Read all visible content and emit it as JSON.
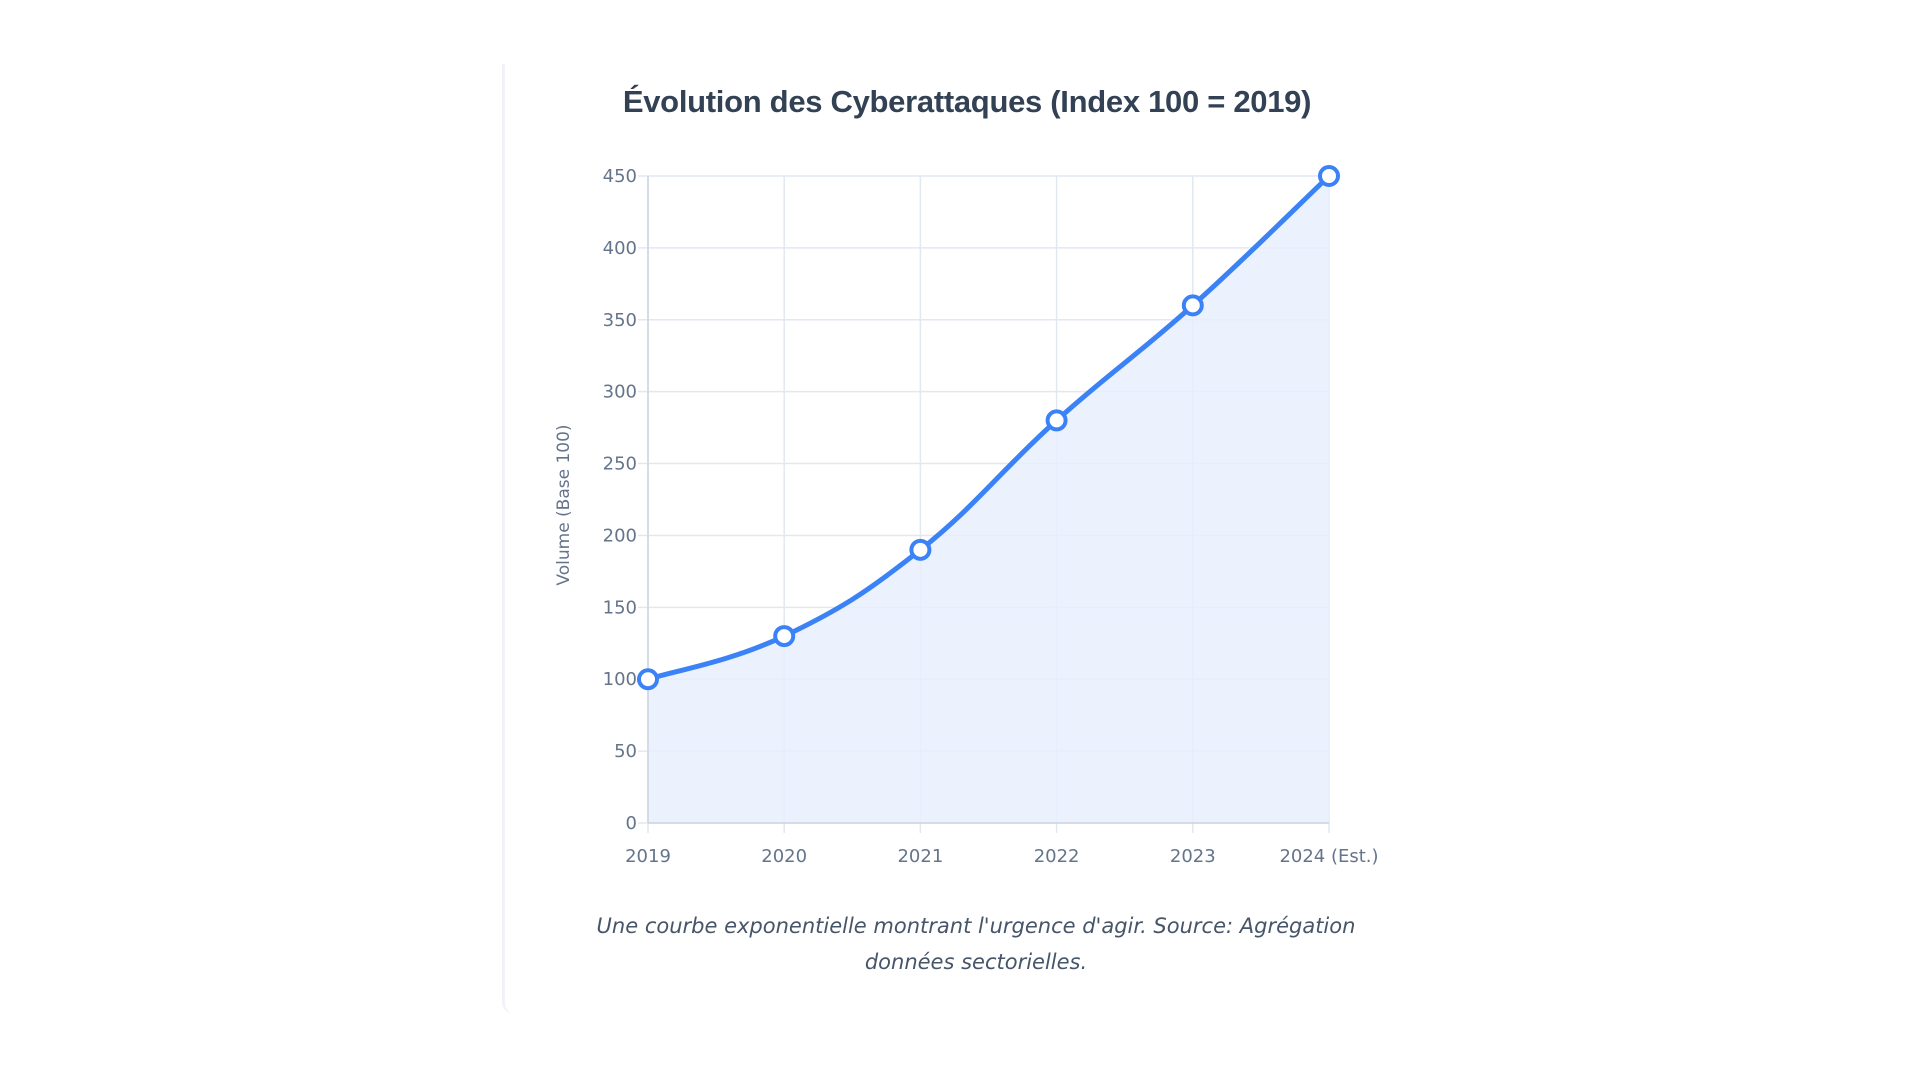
{
  "chart_data": {
    "type": "line",
    "title": "Évolution des Cyberattaques (Index 100 = 2019)",
    "categories": [
      "2019",
      "2020",
      "2021",
      "2022",
      "2023",
      "2024 (Est.)"
    ],
    "series": [
      {
        "name": "Volume (Base 100)",
        "values": [
          100,
          130,
          190,
          280,
          360,
          450
        ]
      }
    ],
    "xlabel": "",
    "ylabel": "Volume (Base 100)",
    "ylim": [
      0,
      450
    ],
    "yticks": [
      0,
      50,
      100,
      150,
      200,
      250,
      300,
      350,
      400,
      450
    ],
    "grid": true,
    "fill": true,
    "legend": "none"
  },
  "colors": {
    "line": "#3b82f6",
    "fill": "#e8effd",
    "grid": "#e2e8f0",
    "axis": "#cbd5e1",
    "tick_text": "#64748b",
    "title": "#334155",
    "caption": "#475569"
  },
  "caption": "Une courbe exponentielle montrant l'urgence d'agir. Source: Agrégation données sectorielles."
}
